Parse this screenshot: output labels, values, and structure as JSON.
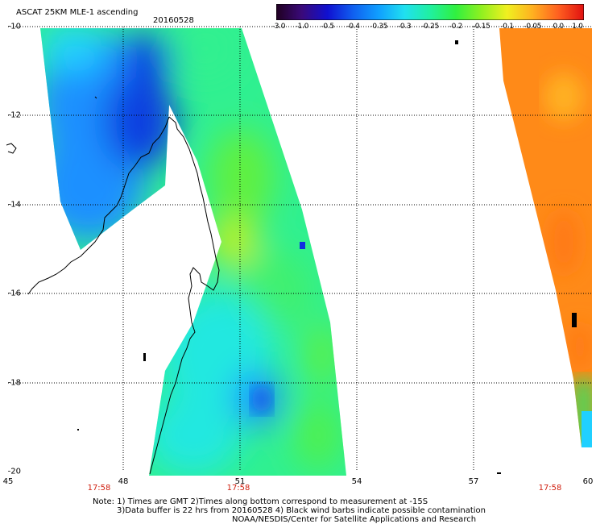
{
  "header": {
    "title": "ASCAT 25KM MLE-1 ascending",
    "date": "20160528"
  },
  "colorbar": {
    "labels": [
      "-3.0",
      "-1.0",
      "-0.5",
      "-0.4",
      "-0.35",
      "-0.3",
      "-0.25",
      "-0.2",
      "-0.15",
      "-0.1",
      "-0.05",
      "0.0",
      "1.0"
    ],
    "colors": [
      "#200020",
      "#3a0a7a",
      "#1010d0",
      "#1060f0",
      "#10a0ff",
      "#20e0f0",
      "#20f0a0",
      "#30f040",
      "#90f020",
      "#f0f020",
      "#ffb020",
      "#ff6020",
      "#e01010"
    ]
  },
  "axes": {
    "lat_labels": [
      "-10",
      "-12",
      "-14",
      "-16",
      "-18",
      "-20"
    ],
    "lon_labels": [
      "45",
      "48",
      "51",
      "54",
      "57",
      "60"
    ]
  },
  "times": [
    "17:58",
    "17:58",
    "17:58"
  ],
  "notes": {
    "line1": "Note: 1) Times are GMT 2)Times along bottom correspond to measurement at -15S",
    "line2": "3)Data buffer is 22 hrs from 20160528 4) Black wind barbs indicate possible contamination",
    "line3": "NOAA/NESDIS/Center for Satellite Applications and Research"
  }
}
